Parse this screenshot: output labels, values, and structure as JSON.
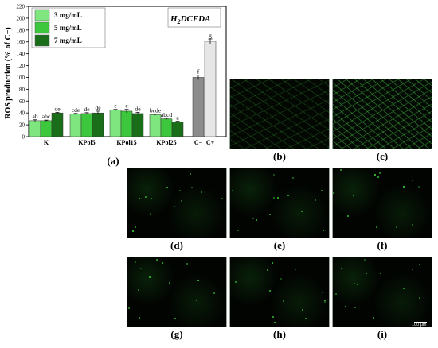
{
  "chart_data": {
    "type": "bar",
    "ylabel": "ROS production (% of C−)",
    "ylim": [
      0,
      220
    ],
    "yticks": [
      0,
      20,
      40,
      60,
      80,
      100,
      120,
      140,
      160,
      180,
      200,
      220
    ],
    "annotation_main": "H",
    "annotation_sub": "2",
    "annotation_rest": "DCFDA",
    "legend_position": "top-left",
    "categories": [
      "K",
      "KPol5",
      "KPol15",
      "KPol25"
    ],
    "series": [
      {
        "name": "3 mg/mL",
        "color": "#7fe57f",
        "values": [
          27,
          38,
          45,
          37
        ],
        "errors": [
          1.5,
          1.2,
          1.0,
          1.0
        ],
        "letters": [
          "ab",
          "cde",
          "e",
          "bcde"
        ]
      },
      {
        "name": "5 mg/mL",
        "color": "#3dc73d",
        "values": [
          27,
          39,
          43,
          30
        ],
        "errors": [
          1.0,
          1.5,
          3.0,
          1.0
        ],
        "letters": [
          "abc",
          "de",
          "e",
          "abcd"
        ]
      },
      {
        "name": "7 mg/mL",
        "color": "#1a6e1a",
        "values": [
          40,
          40,
          39,
          25
        ],
        "errors": [
          1.0,
          3.0,
          2.0,
          1.0
        ],
        "letters": [
          "de",
          "de",
          "de",
          "a"
        ]
      }
    ],
    "controls": [
      {
        "label": "C−",
        "value": 100,
        "error": 4,
        "color": "#8c8c8c",
        "letter": "f"
      },
      {
        "label": "C+",
        "value": 161,
        "error": 4,
        "color": "#e6e6e6",
        "letter": "g"
      }
    ]
  },
  "figure": {
    "chart_label": "(a)",
    "panels": [
      {
        "label": "(b)",
        "density": "dense"
      },
      {
        "label": "(c)",
        "density": "verydense"
      },
      {
        "label": "(d)",
        "density": "sparse"
      },
      {
        "label": "(e)",
        "density": "sparse"
      },
      {
        "label": "(f)",
        "density": "sparse"
      },
      {
        "label": "(g)",
        "density": "sparse"
      },
      {
        "label": "(h)",
        "density": "sparse"
      },
      {
        "label": "(i)",
        "density": "sparse"
      }
    ],
    "scale_bar_text": "100 μm"
  }
}
